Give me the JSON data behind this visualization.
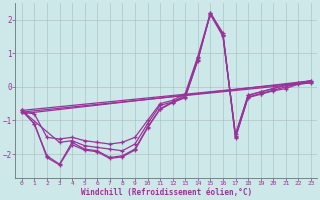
{
  "xlabel": "Windchill (Refroidissement éolien,°C)",
  "background_color": "#cce8e8",
  "line_color": "#993399",
  "grid_color": "#aabbbb",
  "xlim": [
    -0.5,
    23.5
  ],
  "ylim": [
    -2.7,
    2.5
  ],
  "xticks": [
    0,
    1,
    2,
    3,
    4,
    5,
    6,
    7,
    8,
    9,
    10,
    11,
    12,
    13,
    14,
    15,
    16,
    17,
    18,
    19,
    20,
    21,
    22,
    23
  ],
  "yticks": [
    -2,
    -1,
    0,
    1,
    2
  ],
  "line1_x": [
    0,
    1,
    2,
    3,
    4,
    5,
    6,
    7,
    8,
    9,
    10,
    11,
    12,
    13,
    14,
    15,
    16,
    17,
    18,
    19,
    20,
    21,
    22,
    23
  ],
  "line1_y": [
    -0.7,
    -1.1,
    -2.05,
    -2.3,
    -1.65,
    -1.85,
    -1.9,
    -2.1,
    -2.05,
    -1.85,
    -1.2,
    -0.65,
    -0.45,
    -0.3,
    0.8,
    2.2,
    1.6,
    -1.5,
    -0.3,
    -0.2,
    -0.1,
    0.0,
    0.1,
    0.15
  ],
  "line2_x": [
    0,
    1,
    2,
    3,
    4,
    5,
    6,
    7,
    8,
    9,
    10,
    11,
    12,
    13,
    14,
    15,
    16,
    17,
    18,
    19,
    20,
    21,
    22,
    23
  ],
  "line2_y": [
    -0.7,
    -1.1,
    -2.1,
    -2.32,
    -1.72,
    -1.88,
    -1.93,
    -2.13,
    -2.08,
    -1.88,
    -1.22,
    -0.67,
    -0.47,
    -0.32,
    0.78,
    2.18,
    1.55,
    -1.52,
    -0.32,
    -0.22,
    -0.12,
    -0.05,
    0.08,
    0.12
  ],
  "line3_x": [
    0,
    3,
    4,
    5,
    6,
    7,
    8,
    9,
    10,
    11,
    12,
    13,
    14,
    15,
    16,
    17,
    18,
    19,
    20,
    21,
    22,
    23
  ],
  "line3_y": [
    -0.7,
    -1.65,
    -1.6,
    -1.75,
    -1.8,
    -1.85,
    -1.9,
    -1.7,
    -1.1,
    -0.55,
    -0.45,
    -0.25,
    0.85,
    2.15,
    1.5,
    -1.4,
    -0.25,
    -0.15,
    -0.05,
    0.05,
    0.12,
    0.18
  ],
  "line4_x": [
    0,
    1,
    2,
    3,
    4,
    5,
    6,
    7,
    8,
    9,
    10,
    11,
    12,
    13,
    14,
    15,
    16,
    17,
    18,
    19,
    20,
    21,
    22,
    23
  ],
  "line4_y": [
    -0.75,
    -0.8,
    -1.5,
    -1.55,
    -1.5,
    -1.6,
    -1.65,
    -1.7,
    -1.65,
    -1.5,
    -1.0,
    -0.5,
    -0.4,
    -0.2,
    0.9,
    2.2,
    1.55,
    -1.45,
    -0.25,
    -0.15,
    -0.05,
    0.05,
    0.12,
    0.18
  ],
  "line5_x": [
    0,
    23
  ],
  "line5_y": [
    -0.7,
    0.15
  ],
  "line6_x": [
    0,
    23
  ],
  "line6_y": [
    -0.75,
    0.12
  ],
  "line7_x": [
    0,
    23
  ],
  "line7_y": [
    -0.8,
    0.18
  ]
}
